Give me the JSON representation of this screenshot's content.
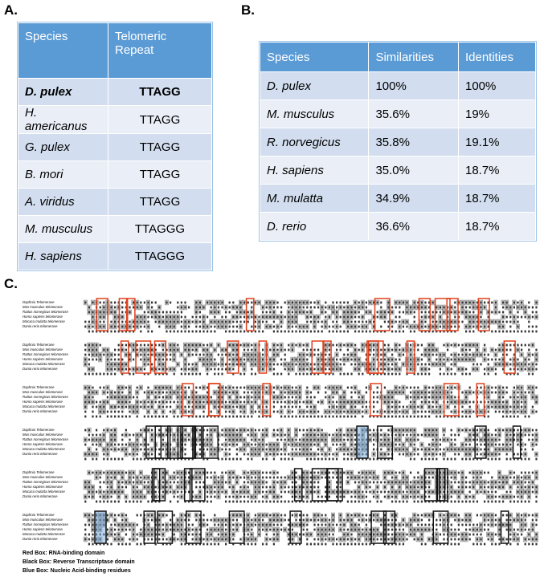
{
  "panels": [
    "A.",
    "B.",
    "C."
  ],
  "table_a": {
    "headers": [
      "Species",
      "Telomeric Repeat"
    ],
    "rows": [
      [
        "D. pulex",
        "TTAGG"
      ],
      [
        "H. americanus",
        "TTAGG"
      ],
      [
        "G. pulex",
        "TTAGG"
      ],
      [
        "B. mori",
        "TTAGG"
      ],
      [
        "A. viridus",
        "TTAGG"
      ],
      [
        "M. musculus",
        "TTAGGG"
      ],
      [
        "H. sapiens",
        "TTAGGG"
      ]
    ]
  },
  "table_b": {
    "headers": [
      "Species",
      "Similarities",
      "Identities"
    ],
    "rows": [
      [
        "D. pulex",
        "100%",
        "100%"
      ],
      [
        "M. musculus",
        "35.6%",
        "19%"
      ],
      [
        "R. norvegicus",
        "35.8%",
        "19.1%"
      ],
      [
        "H. sapiens",
        "35.0%",
        "18.7%"
      ],
      [
        "M. mulatta",
        "34.9%",
        "18.7%"
      ],
      [
        "D. rerio",
        "36.6%",
        "18.7%"
      ]
    ]
  },
  "alignment": {
    "species": [
      "Daphnia Telomerase",
      "Mus musculus telomerase",
      "Rattus norvegicus telomerase",
      "Homo sapiens telomerase",
      "Macaca mulatta telomerase",
      "Danio rerio telomerase"
    ]
  },
  "legend": [
    "Red Box: RNA-binding domain",
    "Black Box: Reverse Transcriptase domain",
    "Blue Box: Nucleic Acid-binding residues"
  ]
}
